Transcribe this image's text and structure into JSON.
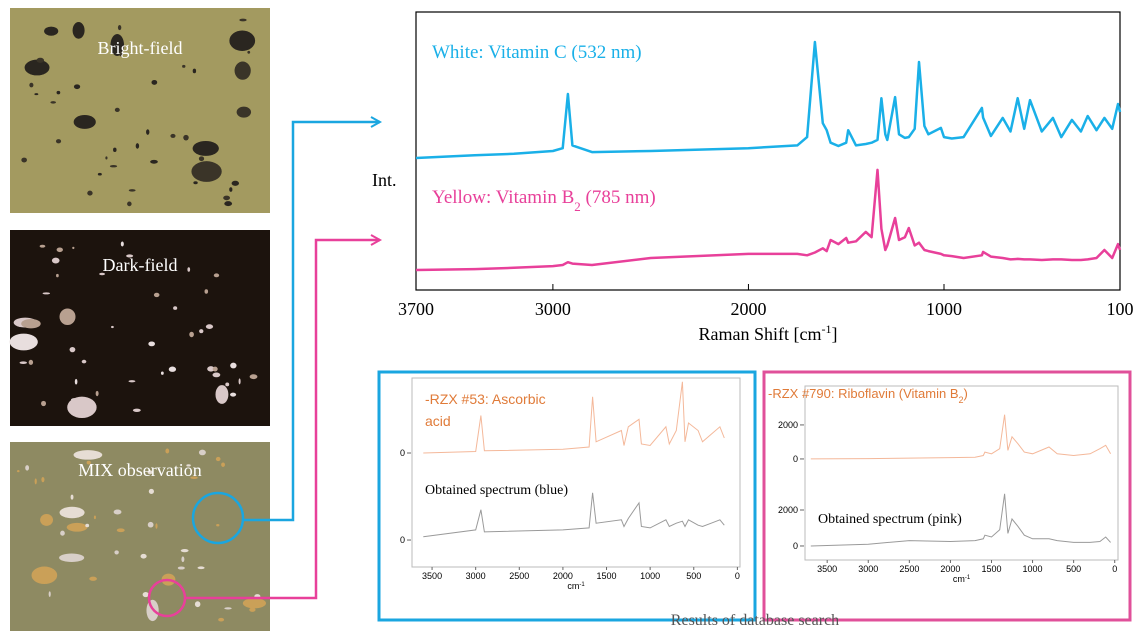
{
  "images": [
    {
      "label": "Bright-field"
    },
    {
      "label": "Dark-field"
    },
    {
      "label": "MIX observation"
    }
  ],
  "chart_data": [
    {
      "type": "line",
      "x": [
        3700,
        3400,
        3200,
        3000,
        2950,
        2923,
        2900,
        2800,
        2500,
        2000,
        1750,
        1700,
        1660,
        1620,
        1600,
        1580,
        1540,
        1500,
        1490,
        1450,
        1400,
        1370,
        1340,
        1320,
        1300,
        1290,
        1250,
        1230,
        1200,
        1180,
        1150,
        1128,
        1100,
        1080,
        1016,
        1000,
        960,
        900,
        806,
        800,
        760,
        700,
        660,
        623,
        590,
        560,
        500,
        443,
        400,
        346,
        300,
        265,
        220,
        180,
        140,
        110,
        100
      ],
      "series": [
        {
          "name": "White: Vitamin C (532 nm)",
          "color": "#1ab0e8",
          "values": [
            4.75,
            4.85,
            4.9,
            5.0,
            5.1,
            7.05,
            5.2,
            4.96,
            5.0,
            5.1,
            5.2,
            5.5,
            8.92,
            6.0,
            5.75,
            5.3,
            5.18,
            5.3,
            5.75,
            5.2,
            5.25,
            5.3,
            5.4,
            6.9,
            5.6,
            5.4,
            6.94,
            5.6,
            5.47,
            5.5,
            5.8,
            8.2,
            5.9,
            5.6,
            5.83,
            5.5,
            5.45,
            5.5,
            6.55,
            6.2,
            5.54,
            6.19,
            5.7,
            6.9,
            5.8,
            6.83,
            5.7,
            6.19,
            5.5,
            6.12,
            5.7,
            6.26,
            5.75,
            6.19,
            5.8,
            6.69,
            6.4
          ]
        },
        {
          "name": [
            "Yellow: Vitamin B",
            "2",
            " (785 nm)"
          ],
          "color": "#e8409a",
          "values": [
            0.72,
            0.75,
            0.8,
            0.86,
            0.9,
            1.0,
            0.95,
            0.9,
            1.15,
            1.3,
            1.3,
            1.25,
            1.35,
            1.5,
            1.4,
            1.8,
            1.65,
            1.87,
            1.7,
            1.75,
            2.09,
            1.9,
            4.32,
            2.2,
            1.44,
            1.6,
            2.59,
            1.8,
            1.9,
            2.23,
            1.6,
            1.7,
            1.44,
            1.4,
            1.3,
            1.25,
            1.22,
            1.15,
            1.25,
            1.37,
            1.2,
            1.15,
            1.1,
            1.12,
            1.1,
            1.1,
            1.08,
            1.1,
            1.1,
            1.08,
            1.08,
            1.1,
            1.15,
            1.44,
            1.15,
            1.65,
            1.44
          ]
        }
      ],
      "xlim": [
        3700,
        100
      ],
      "xticks": [
        3700,
        3000,
        2000,
        1000,
        100
      ],
      "ylim": [
        0,
        10
      ],
      "xlabel": [
        "Raman Shift [cm",
        "-1",
        "]"
      ],
      "ylabel": "Int."
    },
    {
      "type": "line",
      "title": [
        "-RZX #53: Ascorbic",
        "acid"
      ],
      "color": "#f4b89a",
      "x": [
        3600,
        3000,
        2940,
        2900,
        2000,
        1700,
        1660,
        1620,
        1330,
        1300,
        1250,
        1128,
        1100,
        1000,
        820,
        780,
        700,
        630,
        600,
        560,
        450,
        400,
        300,
        200,
        150
      ],
      "values": [
        0,
        0.02,
        0.5,
        0.03,
        0.05,
        0.08,
        0.75,
        0.15,
        0.3,
        0.1,
        0.35,
        0.45,
        0.12,
        0.1,
        0.35,
        0.12,
        0.3,
        0.95,
        0.15,
        0.4,
        0.3,
        0.15,
        0.25,
        0.35,
        0.2
      ],
      "xlim": [
        3730,
        -30
      ],
      "ylim": [
        -0.2,
        1.0
      ],
      "yticks": [
        0
      ]
    },
    {
      "type": "line",
      "title": "Obtained spectrum (blue)",
      "color": "#9a9a9a",
      "x": [
        3600,
        3000,
        2940,
        2900,
        2000,
        1700,
        1660,
        1620,
        1330,
        1300,
        1250,
        1128,
        1100,
        1000,
        820,
        780,
        700,
        630,
        600,
        560,
        450,
        400,
        300,
        200,
        150
      ],
      "values": [
        0.05,
        0.15,
        0.45,
        0.12,
        0.15,
        0.18,
        0.7,
        0.25,
        0.3,
        0.2,
        0.32,
        0.55,
        0.2,
        0.18,
        0.3,
        0.2,
        0.25,
        0.28,
        0.2,
        0.3,
        0.22,
        0.2,
        0.25,
        0.3,
        0.22
      ],
      "xlim": [
        3730,
        -30
      ],
      "xticks": [
        3500,
        3000,
        2500,
        2000,
        1500,
        1000,
        500,
        0
      ],
      "xlabel": [
        "cm",
        "-1"
      ],
      "ylim": [
        -0.4,
        0.92
      ],
      "yticks": [
        0
      ]
    },
    {
      "type": "line",
      "title": [
        "-RZX #790: Riboflavin (Vitamin B",
        "2",
        ")"
      ],
      "color": "#f4b89a",
      "x": [
        3700,
        3000,
        2500,
        2000,
        1700,
        1600,
        1580,
        1500,
        1400,
        1340,
        1300,
        1250,
        1180,
        1100,
        1000,
        800,
        700,
        500,
        300,
        180,
        110,
        50
      ],
      "values": [
        0,
        20,
        50,
        80,
        100,
        200,
        400,
        300,
        600,
        2600,
        500,
        1300,
        900,
        400,
        300,
        700,
        300,
        200,
        300,
        600,
        800,
        300
      ],
      "xlim": [
        3770,
        -40
      ],
      "ylim": [
        -650,
        3760
      ],
      "yticks": [
        0,
        2000
      ]
    },
    {
      "type": "line",
      "title": "Obtained spectrum (pink)",
      "color": "#9a9a9a",
      "x": [
        3700,
        3000,
        2500,
        2000,
        1700,
        1600,
        1580,
        1500,
        1400,
        1340,
        1300,
        1250,
        1180,
        1100,
        1000,
        800,
        700,
        500,
        300,
        180,
        110,
        50
      ],
      "values": [
        0,
        100,
        300,
        250,
        300,
        400,
        600,
        500,
        900,
        2900,
        700,
        1500,
        1100,
        600,
        400,
        400,
        300,
        200,
        200,
        250,
        500,
        200
      ],
      "xlim": [
        3770,
        -40
      ],
      "xticks": [
        3500,
        3000,
        2500,
        2000,
        1500,
        1000,
        500,
        0
      ],
      "xlabel": [
        "cm",
        "-1"
      ],
      "ylim": [
        -780,
        3780
      ],
      "yticks": [
        0,
        2000
      ]
    }
  ],
  "caption": "Results of database search"
}
